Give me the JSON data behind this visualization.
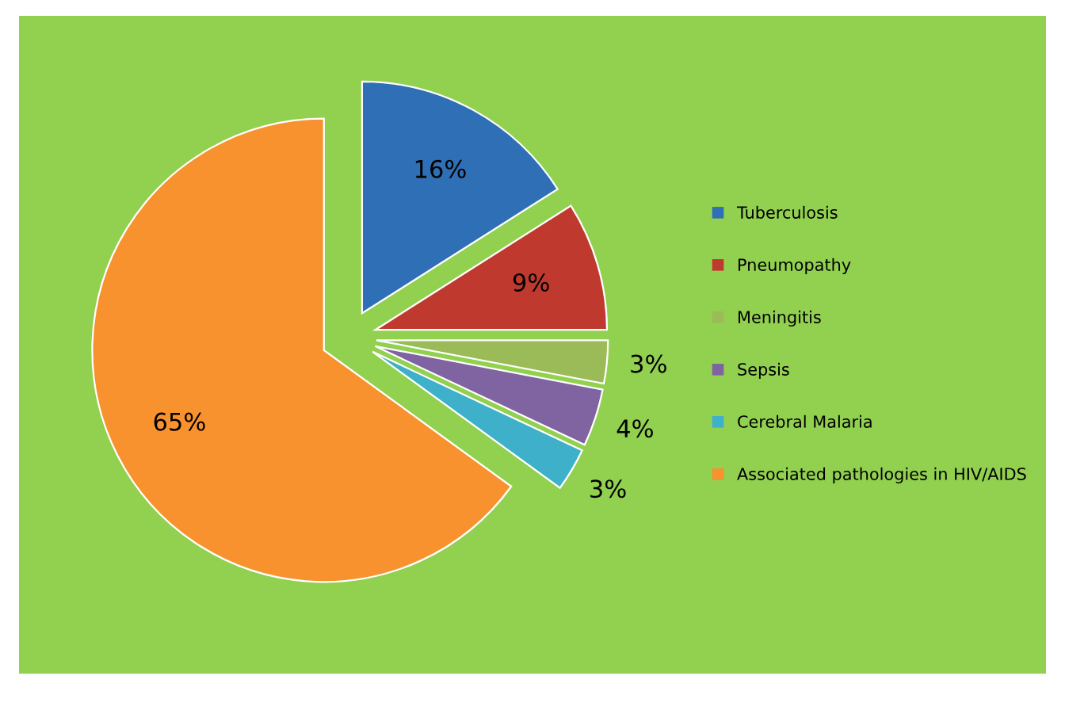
{
  "chart_data": {
    "type": "pie",
    "categories": [
      "Tuberculosis",
      "Pneumopathy",
      "Meningitis",
      "Sepsis",
      "Cerebral Malaria",
      "Associated pathologies in HIV/AIDS"
    ],
    "values": [
      16,
      9,
      3,
      4,
      3,
      65
    ],
    "colors": [
      "#2f6fb5",
      "#c0392f",
      "#9bbb59",
      "#8064a2",
      "#3fb0c9",
      "#f7922e"
    ],
    "value_labels": [
      "16%",
      "9%",
      "3%",
      "4%",
      "3%",
      "65%"
    ],
    "legend": "right"
  }
}
